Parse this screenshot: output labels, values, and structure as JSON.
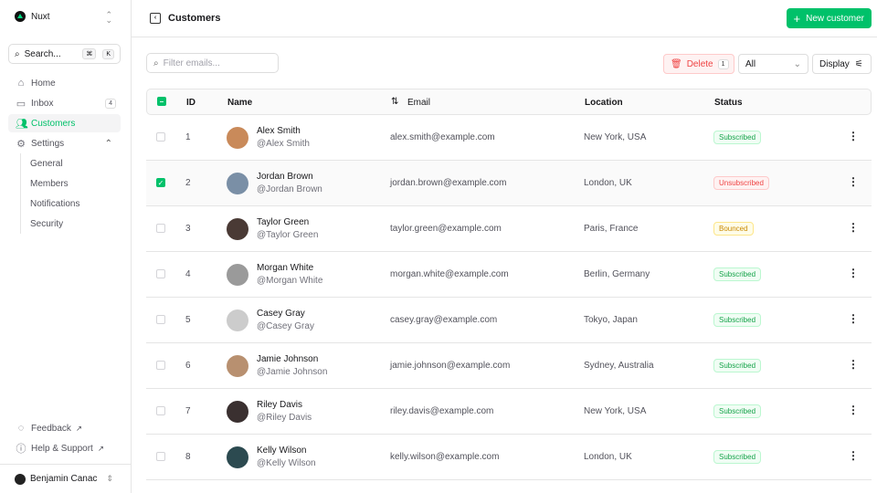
{
  "sidebar": {
    "brand": "Nuxt",
    "search": "Search...",
    "kbd": [
      "⌘",
      "K"
    ],
    "nav": [
      {
        "label": "Home",
        "icon": "home-icon"
      },
      {
        "label": "Inbox",
        "icon": "inbox-icon",
        "badge": "4"
      },
      {
        "label": "Customers",
        "icon": "users-icon",
        "active": true
      },
      {
        "label": "Settings",
        "icon": "gear-icon"
      }
    ],
    "settings_sub": [
      "General",
      "Members",
      "Notifications",
      "Security"
    ],
    "feedback": "Feedback",
    "help": "Help & Support",
    "user": "Benjamin Canac"
  },
  "header": {
    "title": "Customers",
    "new_button": "New customer"
  },
  "toolbar": {
    "filter_placeholder": "Filter emails...",
    "delete_label": "Delete",
    "delete_count": "1",
    "status_select": "All",
    "display_label": "Display"
  },
  "table": {
    "columns": [
      "ID",
      "Name",
      "Email",
      "Location",
      "Status"
    ],
    "rows": [
      {
        "id": "1",
        "name": "Alex Smith",
        "handle": "@Alex Smith",
        "email": "alex.smith@example.com",
        "location": "New York, USA",
        "status": "Subscribed",
        "checked": false
      },
      {
        "id": "2",
        "name": "Jordan Brown",
        "handle": "@Jordan Brown",
        "email": "jordan.brown@example.com",
        "location": "London, UK",
        "status": "Unsubscribed",
        "checked": true
      },
      {
        "id": "3",
        "name": "Taylor Green",
        "handle": "@Taylor Green",
        "email": "taylor.green@example.com",
        "location": "Paris, France",
        "status": "Bounced",
        "checked": false
      },
      {
        "id": "4",
        "name": "Morgan White",
        "handle": "@Morgan White",
        "email": "morgan.white@example.com",
        "location": "Berlin, Germany",
        "status": "Subscribed",
        "checked": false
      },
      {
        "id": "5",
        "name": "Casey Gray",
        "handle": "@Casey Gray",
        "email": "casey.gray@example.com",
        "location": "Tokyo, Japan",
        "status": "Subscribed",
        "checked": false
      },
      {
        "id": "6",
        "name": "Jamie Johnson",
        "handle": "@Jamie Johnson",
        "email": "jamie.johnson@example.com",
        "location": "Sydney, Australia",
        "status": "Subscribed",
        "checked": false
      },
      {
        "id": "7",
        "name": "Riley Davis",
        "handle": "@Riley Davis",
        "email": "riley.davis@example.com",
        "location": "New York, USA",
        "status": "Subscribed",
        "checked": false
      },
      {
        "id": "8",
        "name": "Kelly Wilson",
        "handle": "@Kelly Wilson",
        "email": "kelly.wilson@example.com",
        "location": "London, UK",
        "status": "Subscribed",
        "checked": false
      }
    ]
  },
  "colors": {
    "accent": "#00c16a",
    "danger": "#ef4444",
    "warning": "#eab308"
  }
}
